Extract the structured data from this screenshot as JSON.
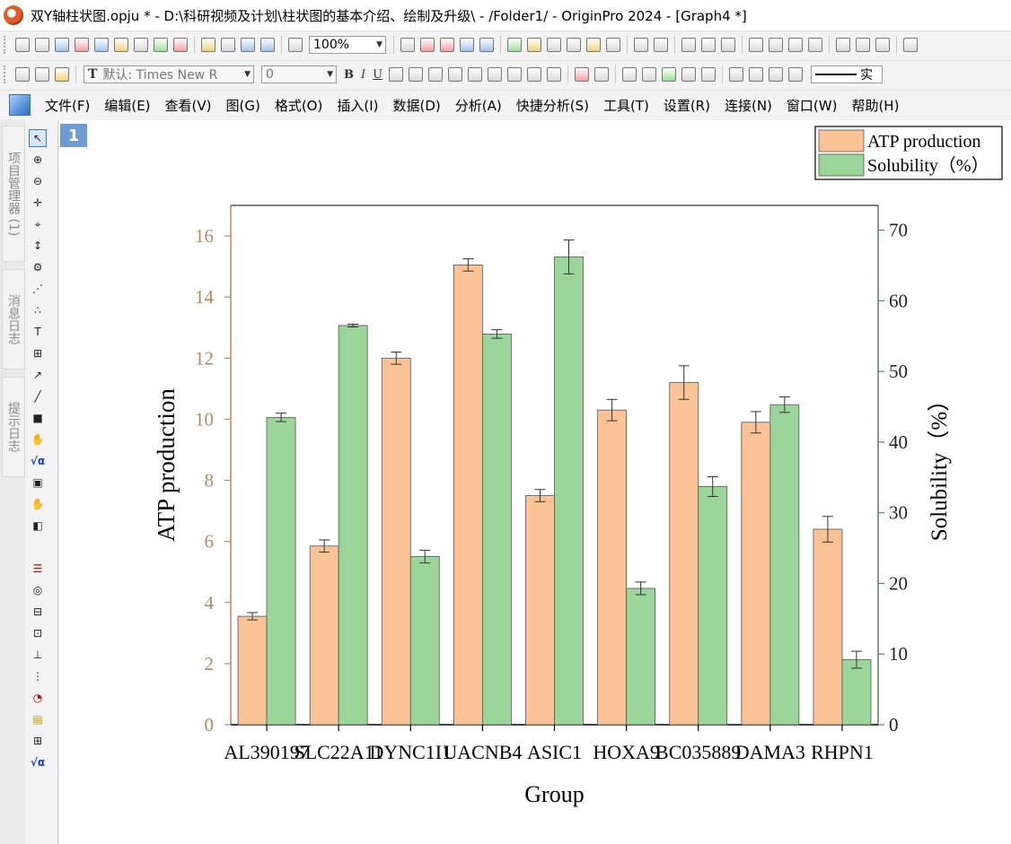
{
  "window": {
    "title": "双Y轴柱状图.opju * - D:\\科研视频及计划\\柱状图的基本介绍、绘制及升级\\ - /Folder1/ - OriginPro 2024 - [Graph4 *]"
  },
  "toolbar1": {
    "zoom_value": "100%"
  },
  "toolbar2": {
    "font_value": "默认: Times New R",
    "size_value": "0",
    "bold": "B",
    "italic": "I",
    "underline": "U",
    "line_style_label": "实"
  },
  "menubar": {
    "items": [
      "文件(F)",
      "编辑(E)",
      "查看(V)",
      "图(G)",
      "格式(O)",
      "插入(I)",
      "数据(D)",
      "分析(A)",
      "快捷分析(S)",
      "工具(T)",
      "设置(R)",
      "连接(N)",
      "窗口(W)",
      "帮助(H)"
    ]
  },
  "side_tabs": [
    "项目管理器 (1)",
    "消息日志",
    "提示日志"
  ],
  "graph": {
    "layer_number": "1"
  },
  "chart_data": {
    "type": "bar",
    "categories": [
      "AL390197",
      "SLC22A11",
      "DYNC1I1",
      "UACNB4",
      "ASIC1",
      "HOXA9",
      "BC035889",
      "DAMA3",
      "RHPN1"
    ],
    "xlabel": "Group",
    "y_left_label": "ATP production",
    "y_right_label": "Solubility（%）",
    "y_left_lim": [
      0,
      17
    ],
    "y_left_ticks": [
      0,
      2,
      4,
      6,
      8,
      10,
      12,
      14,
      16
    ],
    "y_right_lim": [
      0,
      73.5
    ],
    "y_right_ticks": [
      0,
      10,
      20,
      30,
      40,
      50,
      60,
      70
    ],
    "legend_position": "top-right",
    "series": [
      {
        "name": "ATP production",
        "axis": "left",
        "color": "#f9c396",
        "values": [
          3.55,
          5.85,
          12.0,
          15.05,
          7.5,
          10.3,
          11.2,
          9.9,
          6.4
        ],
        "errors": [
          0.12,
          0.2,
          0.2,
          0.2,
          0.2,
          0.35,
          0.55,
          0.35,
          0.42
        ]
      },
      {
        "name": "Solubility（%）",
        "axis": "right",
        "color": "#9bd59a",
        "values": [
          43.5,
          56.5,
          23.8,
          55.3,
          66.2,
          19.3,
          33.7,
          45.3,
          9.2
        ],
        "errors": [
          0.6,
          0.2,
          0.9,
          0.6,
          2.4,
          0.9,
          1.4,
          1.1,
          1.2
        ]
      }
    ],
    "left_axis_color": "#b58a5c",
    "right_axis_color": "#4f8a4f"
  }
}
